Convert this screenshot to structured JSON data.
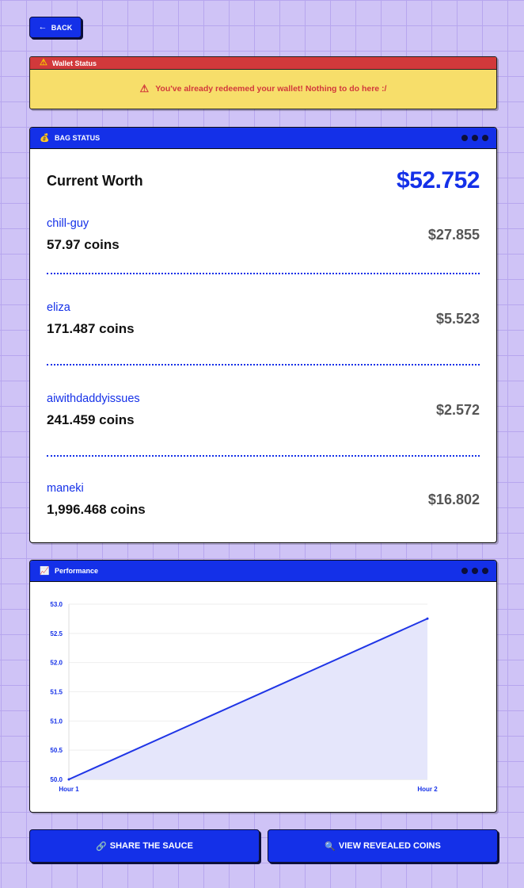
{
  "back": {
    "label": "BACK"
  },
  "wallet_alert": {
    "title": "Wallet Status",
    "message": "You've already redeemed your wallet! Nothing to do here :/"
  },
  "bag": {
    "title": "BAG STATUS",
    "current_worth_label": "Current Worth",
    "current_worth_value": "$52.752",
    "coins": [
      {
        "name": "chill-guy",
        "amount": "57.97 coins",
        "value": "$27.855"
      },
      {
        "name": "eliza",
        "amount": "171.487 coins",
        "value": "$5.523"
      },
      {
        "name": "aiwithdaddyissues",
        "amount": "241.459 coins",
        "value": "$2.572"
      },
      {
        "name": "maneki",
        "amount": "1,996.468 coins",
        "value": "$16.802"
      }
    ]
  },
  "performance": {
    "title": "Performance"
  },
  "chart_data": {
    "type": "area",
    "x": [
      "Hour 1",
      "Hour 2"
    ],
    "values": [
      50.0,
      52.752
    ],
    "ylim": [
      50.0,
      53.0
    ],
    "yticks": [
      "50.0",
      "50.5",
      "51.0",
      "51.5",
      "52.0",
      "52.5",
      "53.0"
    ],
    "xlabel": "",
    "ylabel": "",
    "grid": true,
    "line_color": "#1f35e6",
    "fill_color": "#e5e6fb"
  },
  "actions": {
    "share_label": "SHARE THE SAUCE",
    "share_emoji": "🔗",
    "view_label": "VIEW REVEALED COINS",
    "view_emoji": "🔍"
  }
}
